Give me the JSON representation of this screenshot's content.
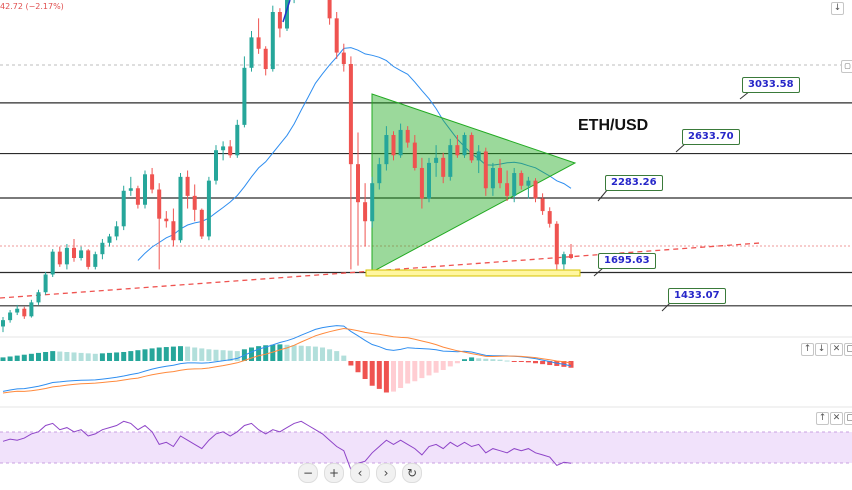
{
  "header": {
    "ohlc_fragment": "42.72 (−2.17%)"
  },
  "chart_data": {
    "type": "candlestick",
    "title": "ETH/USD",
    "series": [
      {
        "name": "price",
        "values": [
          [
            1270,
            1345,
            1225,
            1320
          ],
          [
            1320,
            1400,
            1300,
            1380
          ],
          [
            1380,
            1440,
            1360,
            1410
          ],
          [
            1410,
            1425,
            1330,
            1350
          ],
          [
            1350,
            1480,
            1340,
            1460
          ],
          [
            1460,
            1560,
            1440,
            1540
          ],
          [
            1540,
            1700,
            1520,
            1680
          ],
          [
            1680,
            1880,
            1660,
            1860
          ],
          [
            1860,
            1900,
            1740,
            1760
          ],
          [
            1760,
            1920,
            1720,
            1890
          ],
          [
            1890,
            1960,
            1780,
            1810
          ],
          [
            1810,
            1900,
            1790,
            1870
          ],
          [
            1870,
            1880,
            1720,
            1740
          ],
          [
            1740,
            1860,
            1720,
            1840
          ],
          [
            1840,
            1960,
            1800,
            1930
          ],
          [
            1930,
            2000,
            1900,
            1980
          ],
          [
            1980,
            2100,
            1950,
            2060
          ],
          [
            2060,
            2380,
            2030,
            2340
          ],
          [
            2340,
            2450,
            2300,
            2360
          ],
          [
            2360,
            2380,
            2200,
            2230
          ],
          [
            2230,
            2500,
            2200,
            2470
          ],
          [
            2470,
            2520,
            2320,
            2350
          ],
          [
            2350,
            2400,
            1720,
            2120
          ],
          [
            2120,
            2180,
            2050,
            2100
          ],
          [
            2100,
            2200,
            1900,
            1950
          ],
          [
            1950,
            2480,
            1930,
            2450
          ],
          [
            2450,
            2500,
            2200,
            2300
          ],
          [
            2300,
            2390,
            2100,
            2190
          ],
          [
            2190,
            2200,
            1960,
            1980
          ],
          [
            1980,
            2450,
            1950,
            2420
          ],
          [
            2420,
            2700,
            2390,
            2660
          ],
          [
            2660,
            2730,
            2580,
            2690
          ],
          [
            2690,
            2740,
            2600,
            2620
          ],
          [
            2620,
            2900,
            2600,
            2860
          ],
          [
            2860,
            3400,
            2840,
            3310
          ],
          [
            3310,
            3600,
            3280,
            3550
          ],
          [
            3550,
            3700,
            3420,
            3460
          ],
          [
            3460,
            3480,
            3250,
            3300
          ],
          [
            3300,
            3800,
            3280,
            3750
          ],
          [
            3750,
            3780,
            3550,
            3620
          ],
          [
            3620,
            3900,
            3600,
            3850
          ],
          [
            3850,
            4180,
            3820,
            4150
          ],
          [
            4150,
            4380,
            4100,
            4320
          ],
          [
            4320,
            4360,
            4100,
            4180
          ],
          [
            4180,
            4230,
            3950,
            4100
          ],
          [
            4100,
            4150,
            3880,
            3950
          ],
          [
            3950,
            4000,
            3650,
            3700
          ],
          [
            3700,
            3750,
            3380,
            3430
          ],
          [
            3430,
            3500,
            3280,
            3340
          ],
          [
            3340,
            3400,
            1720,
            2550
          ],
          [
            2550,
            2800,
            1750,
            2250
          ],
          [
            2250,
            2400,
            1900,
            2100
          ],
          [
            2100,
            2450,
            2050,
            2400
          ],
          [
            2400,
            2600,
            2350,
            2550
          ],
          [
            2550,
            2850,
            2500,
            2780
          ],
          [
            2780,
            2810,
            2580,
            2620
          ],
          [
            2620,
            2870,
            2600,
            2820
          ],
          [
            2820,
            2850,
            2680,
            2720
          ],
          [
            2720,
            2780,
            2500,
            2520
          ],
          [
            2520,
            2600,
            2200,
            2280
          ],
          [
            2280,
            2600,
            2250,
            2560
          ],
          [
            2560,
            2700,
            2450,
            2600
          ],
          [
            2600,
            2640,
            2400,
            2450
          ],
          [
            2450,
            2750,
            2420,
            2700
          ],
          [
            2700,
            2780,
            2600,
            2620
          ],
          [
            2620,
            2800,
            2600,
            2780
          ],
          [
            2780,
            2800,
            2560,
            2580
          ],
          [
            2580,
            2700,
            2480,
            2650
          ],
          [
            2650,
            2680,
            2300,
            2360
          ],
          [
            2360,
            2560,
            2300,
            2520
          ],
          [
            2520,
            2590,
            2360,
            2400
          ],
          [
            2400,
            2500,
            2260,
            2300
          ],
          [
            2300,
            2520,
            2250,
            2480
          ],
          [
            2480,
            2500,
            2350,
            2380
          ],
          [
            2380,
            2450,
            2280,
            2420
          ],
          [
            2420,
            2440,
            2250,
            2280
          ],
          [
            2280,
            2320,
            2150,
            2180
          ],
          [
            2180,
            2210,
            2050,
            2080
          ],
          [
            2080,
            2100,
            1720,
            1760
          ],
          [
            1760,
            1860,
            1720,
            1840
          ],
          [
            1840,
            1920,
            1800,
            1810
          ]
        ]
      }
    ],
    "horizontal_levels": [
      3033.58,
      2633.7,
      2283.26,
      1695.63,
      1433.07
    ],
    "level_labels": [
      "3033.58",
      "2633.70",
      "2283.26",
      "1695.63",
      "1433.07"
    ],
    "macd_histogram": [
      8,
      10,
      12,
      14,
      16,
      18,
      20,
      22,
      21,
      20,
      19,
      18,
      17,
      16,
      17,
      18,
      19,
      20,
      22,
      24,
      26,
      28,
      30,
      31,
      32,
      33,
      32,
      30,
      28,
      26,
      25,
      24,
      23,
      22,
      26,
      30,
      33,
      35,
      36,
      37,
      36,
      35,
      34,
      33,
      32,
      30,
      26,
      22,
      12,
      -10,
      -25,
      -40,
      -55,
      -62,
      -70,
      -68,
      -60,
      -50,
      -45,
      -38,
      -32,
      -26,
      -20,
      -12,
      -5,
      4,
      8,
      6,
      5,
      4,
      3,
      1,
      -1,
      -2,
      -3,
      -5,
      -7,
      -9,
      -11,
      -13,
      -15
    ],
    "rsi": [
      55,
      57,
      56,
      58,
      62,
      64,
      70,
      72,
      66,
      68,
      64,
      66,
      60,
      62,
      66,
      68,
      70,
      74,
      72,
      66,
      70,
      64,
      52,
      54,
      50,
      60,
      56,
      52,
      48,
      56,
      62,
      64,
      60,
      64,
      70,
      72,
      66,
      62,
      66,
      64,
      68,
      72,
      74,
      70,
      66,
      62,
      56,
      50,
      46,
      28,
      34,
      36,
      44,
      50,
      56,
      52,
      56,
      52,
      48,
      42,
      50,
      52,
      48,
      54,
      50,
      54,
      50,
      52,
      44,
      48,
      46,
      44,
      48,
      46,
      48,
      44,
      42,
      40,
      32,
      35,
      34
    ],
    "colors": {
      "bull": "#26a69a",
      "bear": "#ef5350",
      "triangle": "#22aa22",
      "ma": "#2f8ef0",
      "trend": "#ef5350"
    },
    "grid": false
  }
}
